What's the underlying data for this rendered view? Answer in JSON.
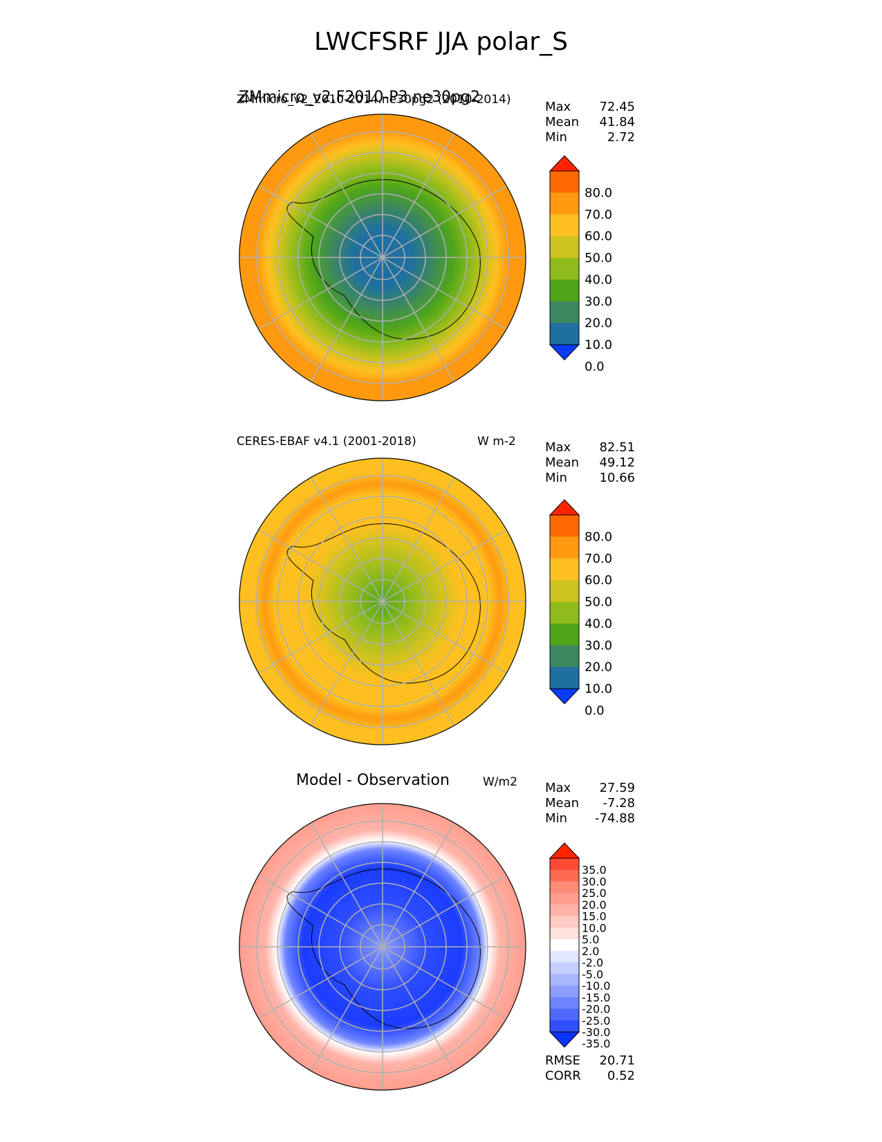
{
  "title": "LWCFSRF JJA polar_S",
  "panels": [
    {
      "id": "test",
      "title_main": "ZMmicro_v2.F2010-P3.ne30pg2",
      "title_left": "ZMmicro_v2_2010-2014.ne30pg2 (2010-2014)",
      "units": "",
      "stats": {
        "max_label": "Max",
        "max": "72.45",
        "mean_label": "Mean",
        "mean": "41.84",
        "min_label": "Min",
        "min": "2.72"
      },
      "colorbar": {
        "ticks": [
          "80.0",
          "70.0",
          "60.0",
          "50.0",
          "40.0",
          "30.0",
          "20.0",
          "10.0",
          "0.0"
        ],
        "colors": [
          "#ff2400",
          "#ff6a00",
          "#ff9a10",
          "#fdc020",
          "#cfc31f",
          "#8fbb1c",
          "#4fa619",
          "#3c8760",
          "#1f6fa0",
          "#0a3bff"
        ]
      }
    },
    {
      "id": "reference",
      "title_left": "CERES-EBAF v4.1 (2001-2018)",
      "units": "W m-2",
      "stats": {
        "max_label": "Max",
        "max": "82.51",
        "mean_label": "Mean",
        "mean": "49.12",
        "min_label": "Min",
        "min": "10.66"
      },
      "colorbar": {
        "ticks": [
          "80.0",
          "70.0",
          "60.0",
          "50.0",
          "40.0",
          "30.0",
          "20.0",
          "10.0",
          "0.0"
        ],
        "colors": [
          "#ff2400",
          "#ff6a00",
          "#ff9a10",
          "#fdc020",
          "#cfc31f",
          "#8fbb1c",
          "#4fa619",
          "#3c8760",
          "#1f6fa0",
          "#0a3bff"
        ]
      }
    },
    {
      "id": "diff",
      "title_center": "Model - Observation",
      "units": "W/m2",
      "stats": {
        "max_label": "Max",
        "max": "27.59",
        "mean_label": "Mean",
        "mean": "-7.28",
        "min_label": "Min",
        "min": "-74.88"
      },
      "colorbar": {
        "ticks": [
          "35.0",
          "30.0",
          "25.0",
          "20.0",
          "15.0",
          "10.0",
          "5.0",
          "2.0",
          "-2.0",
          "-5.0",
          "-10.0",
          "-15.0",
          "-20.0",
          "-25.0",
          "-30.0",
          "-35.0"
        ],
        "colors": [
          "#ff2400",
          "#ff4a35",
          "#ff6a55",
          "#ff8a75",
          "#ff9e8e",
          "#ffb3a8",
          "#ffcbc3",
          "#ffe2de",
          "#ffffff",
          "#e1e6ff",
          "#c4ceff",
          "#a9b7ff",
          "#8c9dff",
          "#6e84ff",
          "#4f69ff",
          "#2f4eff",
          "#0a34ff"
        ]
      },
      "metrics": {
        "rmse_label": "RMSE",
        "rmse": "20.71",
        "corr_label": "CORR",
        "corr": "0.52"
      }
    }
  ],
  "chart_data": [
    {
      "type": "heatmap",
      "projection": "south polar stereographic",
      "title": "ZMmicro_v2.F2010-P3.ne30pg2",
      "subtitle": "ZMmicro_v2_2010-2014.ne30pg2 (2010-2014)",
      "variable": "LWCFSRF",
      "season": "JJA",
      "max": 72.45,
      "mean": 41.84,
      "min": 2.72,
      "levels": [
        0,
        10,
        20,
        30,
        40,
        50,
        60,
        70,
        80
      ]
    },
    {
      "type": "heatmap",
      "projection": "south polar stereographic",
      "title": "CERES-EBAF v4.1 (2001-2018)",
      "units": "W m-2",
      "max": 82.51,
      "mean": 49.12,
      "min": 10.66,
      "levels": [
        0,
        10,
        20,
        30,
        40,
        50,
        60,
        70,
        80
      ]
    },
    {
      "type": "heatmap",
      "projection": "south polar stereographic",
      "title": "Model - Observation",
      "units": "W/m2",
      "max": 27.59,
      "mean": -7.28,
      "min": -74.88,
      "rmse": 20.71,
      "corr": 0.52,
      "levels": [
        -35,
        -30,
        -25,
        -20,
        -15,
        -10,
        -5,
        -2,
        2,
        5,
        10,
        15,
        20,
        25,
        30,
        35
      ]
    }
  ]
}
